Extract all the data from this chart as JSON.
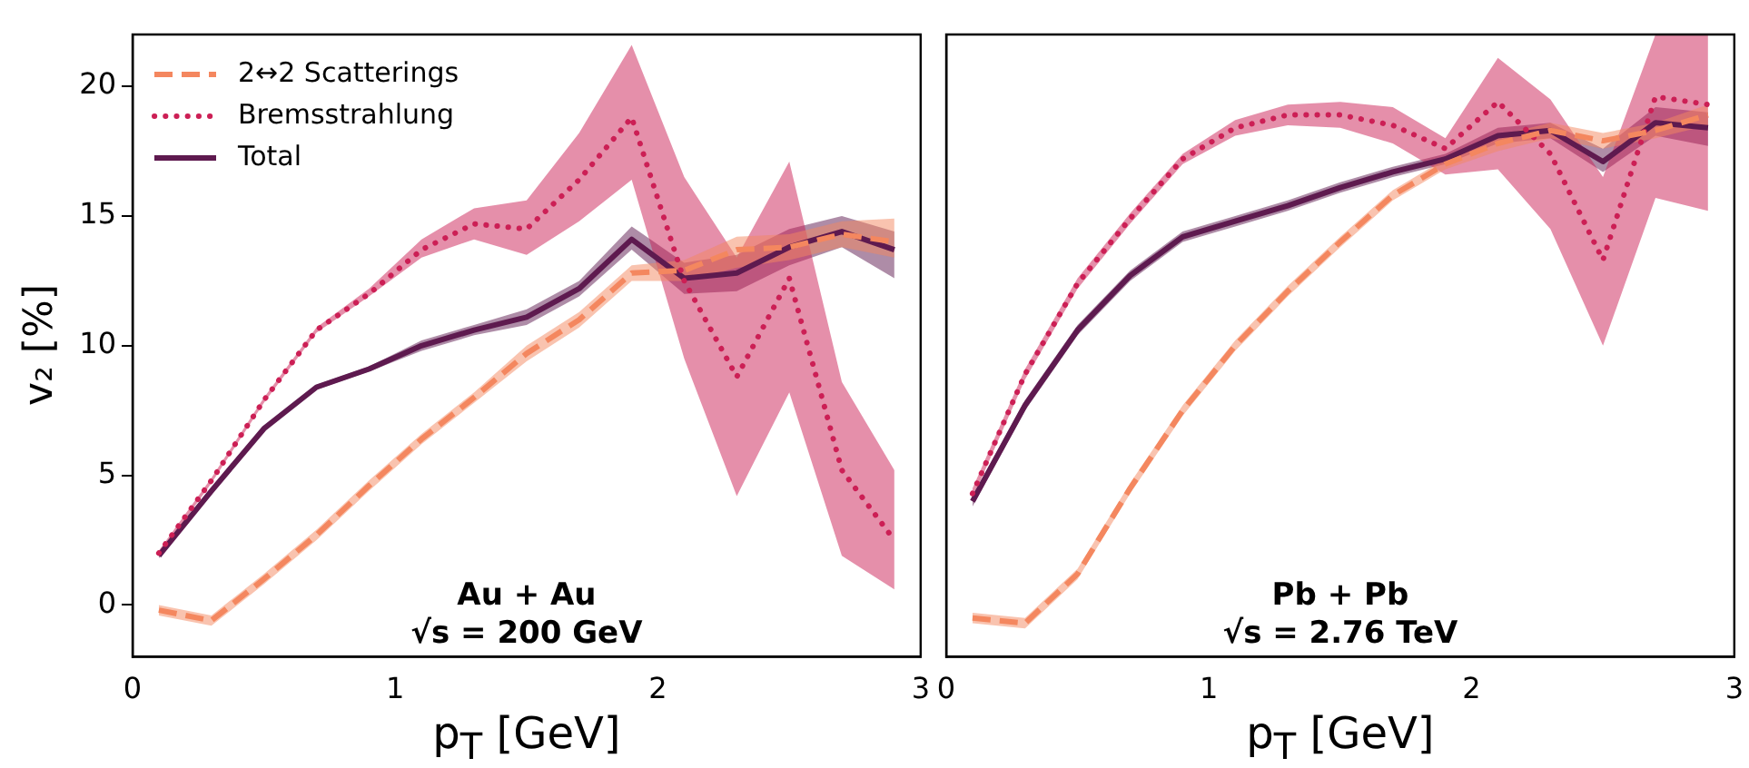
{
  "chart_data": [
    {
      "type": "line",
      "xlabel": "p$_{T}$ [GeV]",
      "ylabel": "v₂ [%]",
      "xlim": [
        0,
        3
      ],
      "xticks": [
        0,
        1,
        2,
        3
      ],
      "ylim": [
        -2,
        22
      ],
      "yticks": [
        0,
        5,
        10,
        15,
        20
      ],
      "grid": false,
      "legend": "top left",
      "marker": "none",
      "x": [
        0.1,
        0.3,
        0.5,
        0.7,
        0.9,
        1.1,
        1.3,
        1.5,
        1.7,
        1.9,
        2.1,
        2.3,
        2.5,
        2.7,
        2.9
      ],
      "annotations": [
        "Au + Au",
        "√s = 200 GeV"
      ],
      "series": [
        {
          "name": "2↔2 Scatterings",
          "color": "#f4875f",
          "line_style": "dashed",
          "values": [
            -0.2,
            -0.6,
            1.0,
            2.7,
            4.6,
            6.4,
            8.0,
            9.7,
            11.0,
            12.8,
            12.9,
            13.7,
            13.8,
            14.3,
            14.0
          ],
          "lower": [
            -0.4,
            -0.8,
            0.8,
            2.5,
            4.4,
            6.2,
            7.8,
            9.4,
            10.7,
            12.5,
            12.5,
            13.0,
            13.3,
            13.8,
            13.4
          ],
          "upper": [
            0.0,
            -0.4,
            1.2,
            2.9,
            4.8,
            6.6,
            8.2,
            10.0,
            11.3,
            13.1,
            13.3,
            14.2,
            14.3,
            14.8,
            14.9
          ]
        },
        {
          "name": "Bremsstrahlung",
          "color": "#cc1f55",
          "line_style": "dotted",
          "values": [
            2.0,
            4.8,
            7.9,
            10.6,
            12.0,
            13.7,
            14.7,
            14.5,
            16.4,
            18.8,
            12.5,
            8.8,
            12.6,
            5.2,
            2.5
          ],
          "lower": [
            1.9,
            4.7,
            7.8,
            10.5,
            11.9,
            13.4,
            14.1,
            13.5,
            14.8,
            16.4,
            9.5,
            4.2,
            8.2,
            1.9,
            0.6
          ],
          "upper": [
            2.1,
            4.9,
            8.0,
            10.7,
            12.2,
            14.1,
            15.3,
            15.6,
            18.2,
            21.6,
            16.5,
            13.4,
            17.1,
            8.6,
            5.2
          ]
        },
        {
          "name": "Total",
          "color": "#5e1a4f",
          "line_style": "solid",
          "values": [
            1.9,
            4.4,
            6.8,
            8.4,
            9.1,
            10.0,
            10.6,
            11.1,
            12.2,
            14.1,
            12.6,
            12.8,
            13.8,
            14.4,
            13.7
          ],
          "lower": [
            1.8,
            4.3,
            6.7,
            8.3,
            9.0,
            9.8,
            10.4,
            10.8,
            11.9,
            13.7,
            12.0,
            12.1,
            13.1,
            13.8,
            12.6
          ],
          "upper": [
            2.0,
            4.5,
            6.9,
            8.5,
            9.2,
            10.2,
            10.8,
            11.4,
            12.5,
            14.6,
            13.2,
            13.5,
            14.5,
            15.0,
            14.4
          ]
        }
      ]
    },
    {
      "type": "line",
      "xlabel": "p$_{T}$ [GeV]",
      "xlim": [
        0,
        3
      ],
      "xticks": [
        0,
        1,
        2,
        3
      ],
      "ylim": [
        -2,
        22
      ],
      "yticks": [
        0,
        5,
        10,
        15,
        20
      ],
      "tick_labels": "x",
      "grid": false,
      "marker": "none",
      "x": [
        0.1,
        0.3,
        0.5,
        0.7,
        0.9,
        1.1,
        1.3,
        1.5,
        1.7,
        1.9,
        2.1,
        2.3,
        2.5,
        2.7,
        2.9
      ],
      "annotations": [
        "Pb + Pb",
        "√s = 2.76 TeV"
      ],
      "series": [
        {
          "color": "#f4875f",
          "line_style": "dashed",
          "values": [
            -0.5,
            -0.7,
            1.2,
            4.5,
            7.5,
            10.0,
            12.1,
            14.0,
            15.8,
            17.0,
            17.8,
            18.3,
            17.9,
            18.3,
            18.9
          ],
          "lower": [
            -0.7,
            -0.9,
            1.0,
            4.3,
            7.3,
            9.8,
            11.9,
            13.8,
            15.6,
            16.8,
            17.5,
            18.0,
            17.6,
            18.0,
            18.5
          ],
          "upper": [
            -0.3,
            -0.5,
            1.4,
            4.7,
            7.7,
            10.2,
            12.3,
            14.2,
            16.0,
            17.2,
            18.1,
            18.6,
            18.2,
            18.6,
            19.3
          ]
        },
        {
          "color": "#cc1f55",
          "line_style": "dotted",
          "values": [
            4.3,
            8.9,
            12.4,
            14.9,
            17.2,
            18.4,
            18.9,
            18.9,
            18.5,
            17.6,
            19.4,
            17.4,
            13.3,
            19.6,
            19.3
          ],
          "lower": [
            4.1,
            8.7,
            12.2,
            14.7,
            17.0,
            18.1,
            18.5,
            18.4,
            17.8,
            16.6,
            16.8,
            14.5,
            10.0,
            15.7,
            15.2
          ],
          "upper": [
            4.5,
            9.1,
            12.6,
            15.1,
            17.4,
            18.7,
            19.3,
            19.4,
            19.2,
            18.0,
            21.1,
            19.5,
            16.5,
            22,
            22
          ]
        },
        {
          "color": "#5e1a4f",
          "line_style": "solid",
          "values": [
            4.0,
            7.7,
            10.6,
            12.7,
            14.2,
            14.8,
            15.4,
            16.1,
            16.7,
            17.2,
            18.1,
            18.3,
            17.1,
            18.6,
            18.4
          ],
          "lower": [
            3.8,
            7.5,
            10.4,
            12.5,
            14.0,
            14.6,
            15.2,
            15.9,
            16.5,
            17.0,
            17.8,
            18.0,
            16.7,
            18.1,
            17.7
          ],
          "upper": [
            4.2,
            7.9,
            10.8,
            12.9,
            14.4,
            15.0,
            15.6,
            16.3,
            16.9,
            17.4,
            18.4,
            18.6,
            17.6,
            19.2,
            19.0
          ]
        }
      ]
    }
  ]
}
